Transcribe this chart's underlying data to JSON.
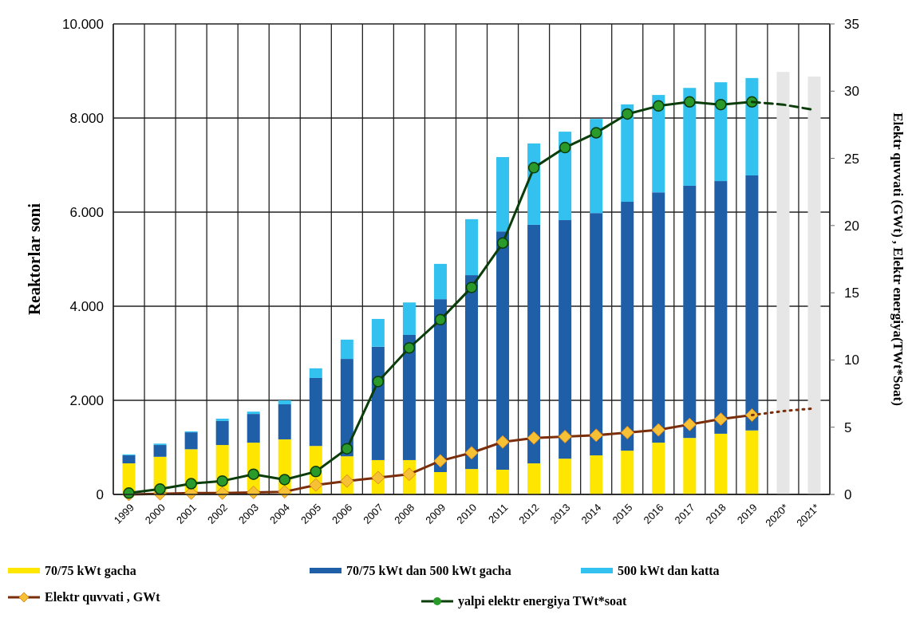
{
  "chart_data": {
    "type": "bar",
    "stacked": true,
    "categories": [
      "1999",
      "2000",
      "2001",
      "2002",
      "2003",
      "2004",
      "2005",
      "2006",
      "2007",
      "2008",
      "2009",
      "2010",
      "2011",
      "2012",
      "2013",
      "2014",
      "2015",
      "2016",
      "2017",
      "2018",
      "2019",
      "2020*",
      "2021*"
    ],
    "series": [
      {
        "name": "70/75 kWt gacha",
        "color": "#ffe600",
        "values": [
          660,
          800,
          960,
          1050,
          1100,
          1170,
          1030,
          810,
          730,
          730,
          475,
          540,
          525,
          660,
          760,
          830,
          930,
          1100,
          1200,
          1290,
          1360,
          null,
          null
        ]
      },
      {
        "name": "70/75 kWt dan 500 kWt gacha",
        "color": "#1f5fa8",
        "values": [
          170,
          250,
          360,
          510,
          610,
          745,
          1445,
          2070,
          2410,
          2660,
          3675,
          4120,
          5065,
          5070,
          5070,
          5150,
          5290,
          5320,
          5360,
          5370,
          5420,
          null,
          null
        ]
      },
      {
        "name": "500 kWt dan  katta",
        "color": "#33c1f0",
        "values": [
          20,
          30,
          20,
          50,
          50,
          85,
          205,
          410,
          590,
          690,
          750,
          1190,
          1580,
          1730,
          1880,
          2000,
          2070,
          2070,
          2080,
          2100,
          2070,
          null,
          null
        ]
      },
      {
        "color": "#e6e6e6",
        "values": [
          null,
          null,
          null,
          null,
          null,
          null,
          null,
          null,
          null,
          null,
          null,
          null,
          null,
          null,
          null,
          null,
          null,
          null,
          null,
          null,
          null,
          8980,
          8880
        ]
      },
      {
        "name": "Elektr quvvati , GWt",
        "type": "line",
        "axis": "y2",
        "color": "#7a2e0a",
        "marker": "diamond",
        "line_style": "solid",
        "values": [
          0,
          0.05,
          0.1,
          0.1,
          0.15,
          0.2,
          0.7,
          1.0,
          1.25,
          1.5,
          2.5,
          3.1,
          3.9,
          4.2,
          4.3,
          4.4,
          4.6,
          4.8,
          5.2,
          5.6,
          5.9,
          null,
          null
        ]
      },
      {
        "type": "line",
        "axis": "y2",
        "color": "#7a2e0a",
        "marker": "none",
        "line_style": "dotted",
        "values": [
          null,
          null,
          null,
          null,
          null,
          null,
          null,
          null,
          null,
          null,
          null,
          null,
          null,
          null,
          null,
          null,
          null,
          null,
          null,
          null,
          5.9,
          6.2,
          6.4
        ]
      },
      {
        "name": "yalpi elektr energiya TWt*soat",
        "type": "line",
        "axis": "y2",
        "color": "#0b3d0b",
        "marker": "circle",
        "line_style": "solid",
        "values": [
          0.1,
          0.4,
          0.8,
          1.0,
          1.5,
          1.1,
          1.7,
          3.4,
          8.4,
          10.9,
          13.0,
          15.4,
          18.7,
          24.3,
          25.8,
          26.9,
          28.3,
          28.9,
          29.2,
          29.0,
          29.2,
          null,
          null
        ]
      },
      {
        "type": "line",
        "axis": "y2",
        "color": "#0b3d0b",
        "marker": "none",
        "line_style": "dashed",
        "values": [
          null,
          null,
          null,
          null,
          null,
          null,
          null,
          null,
          null,
          null,
          null,
          null,
          null,
          null,
          null,
          null,
          null,
          null,
          null,
          null,
          29.2,
          29.0,
          28.6
        ]
      }
    ],
    "ylabel": "Reaktorlar soni",
    "y2label": "Elektr quvvati (GWt) ,  Elektr energiya(TWt*Soat)",
    "ylim": [
      0,
      10000
    ],
    "yticks": [
      {
        "value": 0,
        "label": "0"
      },
      {
        "value": 2000,
        "label": "2.000"
      },
      {
        "value": 4000,
        "label": "4.000"
      },
      {
        "value": 6000,
        "label": "6.000"
      },
      {
        "value": 8000,
        "label": "8.000"
      },
      {
        "value": 10000,
        "label": "10.000"
      }
    ],
    "y2lim": [
      0,
      35
    ],
    "y2ticks": [
      0,
      5,
      10,
      15,
      20,
      25,
      30,
      35
    ],
    "grid": true,
    "legend": "bottom"
  }
}
